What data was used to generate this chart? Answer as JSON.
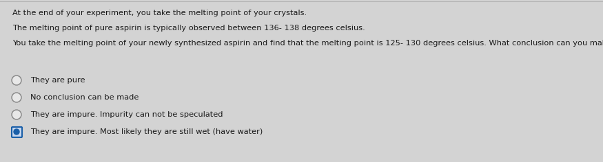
{
  "background_color": "#d3d3d3",
  "top_line_color": "#b0b0b0",
  "text_color": "#1a1a1a",
  "paragraph1": "At the end of your experiment, you take the melting point of your crystals.",
  "paragraph2": "The melting point of pure aspirin is typically observed between 136- 138 degrees celsius.",
  "paragraph3": "You take the melting point of your newly synthesized aspirin and find that the melting point is 125- 130 degrees celsius. What conclusion can you make about your crystals?",
  "options": [
    {
      "text": "They are pure",
      "selected": false
    },
    {
      "text": "No conclusion can be made",
      "selected": false
    },
    {
      "text": "They are impure. Impurity can not be speculated",
      "selected": false
    },
    {
      "text": "They are impure. Most likely they are still wet (have water)",
      "selected": true
    }
  ],
  "font_size_para": 8.2,
  "font_size_option": 8.2,
  "selected_color": "#1a5fa8",
  "selected_fill": "#c8d8ef",
  "unselected_border_color": "#888888",
  "unselected_fill": "#e8e8e8"
}
